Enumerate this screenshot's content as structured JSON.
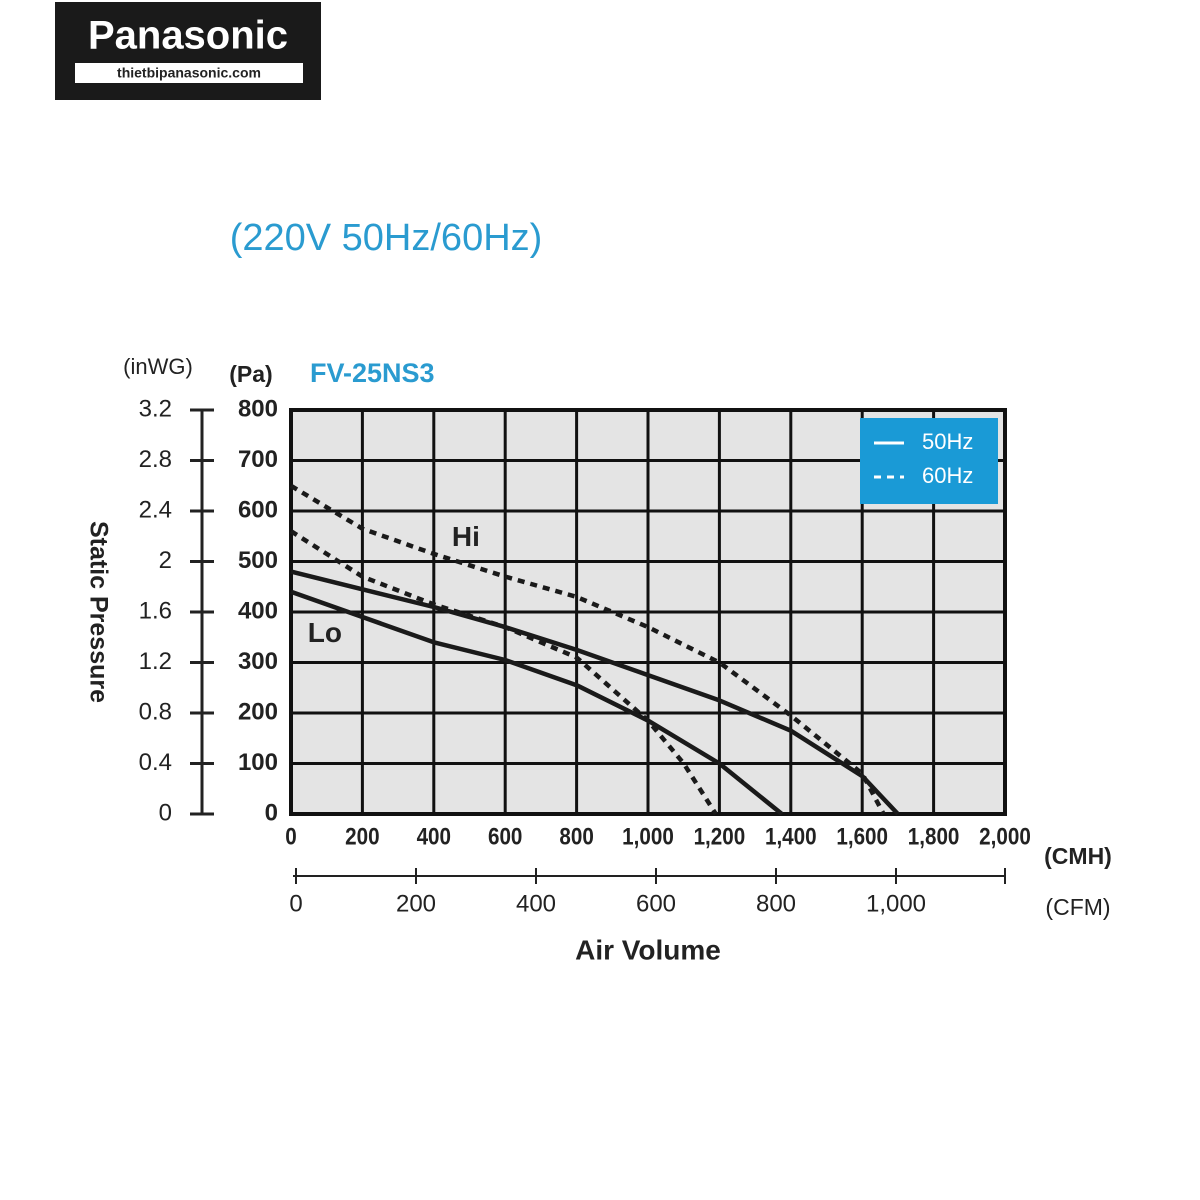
{
  "logo": {
    "brand": "Panasonic",
    "site": "thietbipanasonic.com"
  },
  "chart_data": {
    "type": "line",
    "subtitle": "(220V 50Hz/60Hz)",
    "title": "FV-25NS3",
    "y_label": "Static Pressure",
    "x_label": "Air Volume",
    "y_unit": "(Pa)",
    "y2_unit": "(inWG)",
    "x_unit": "(CMH)",
    "x2_unit": "(CFM)",
    "xlim": [
      0,
      2000
    ],
    "xticks": [
      0,
      200,
      400,
      600,
      800,
      {
        "value": 1000,
        "label": "1,000"
      },
      {
        "value": 1200,
        "label": "1,200"
      },
      {
        "value": 1400,
        "label": "1,400"
      },
      {
        "value": 1600,
        "label": "1,600"
      },
      {
        "value": 1800,
        "label": "1,800"
      },
      {
        "value": 2000,
        "label": "2,000"
      }
    ],
    "x2lim": [
      0,
      1180
    ],
    "x2ticks": [
      0,
      200,
      400,
      600,
      800,
      {
        "value": 1000,
        "label": "1,000"
      }
    ],
    "ylim": [
      0,
      800
    ],
    "yticks": [
      0,
      100,
      200,
      300,
      400,
      500,
      600,
      700,
      800
    ],
    "y2lim": [
      0,
      3.2
    ],
    "y2ticks": [
      0,
      0.4,
      0.8,
      1.2,
      1.6,
      2.0,
      2.4,
      2.8,
      3.2
    ],
    "grid": true,
    "legend_position": "upper right",
    "legend": [
      {
        "label": "50Hz",
        "style": "solid"
      },
      {
        "label": "60Hz",
        "style": "dashed"
      }
    ],
    "series": [
      {
        "legend": 0,
        "color": "#1a1a1a",
        "x": [
          0,
          200,
          400,
          600,
          800,
          1000,
          1200,
          1400,
          1600,
          1700
        ],
        "values": [
          480,
          445,
          410,
          370,
          325,
          275,
          225,
          165,
          75,
          0
        ]
      },
      {
        "legend": 0,
        "color": "#1a1a1a",
        "x": [
          0,
          200,
          400,
          600,
          800,
          1000,
          1200,
          1375
        ],
        "values": [
          440,
          390,
          340,
          305,
          255,
          185,
          100,
          0
        ]
      },
      {
        "legend": 1,
        "color": "#1a1a1a",
        "x": [
          0,
          200,
          400,
          600,
          800,
          1000,
          1200,
          1400,
          1600,
          1660
        ],
        "values": [
          650,
          565,
          515,
          470,
          430,
          370,
          300,
          195,
          80,
          0
        ]
      },
      {
        "legend": 1,
        "color": "#1a1a1a",
        "x": [
          0,
          200,
          400,
          600,
          800,
          1000,
          1100,
          1190
        ],
        "values": [
          560,
          470,
          415,
          370,
          310,
          185,
          100,
          0
        ]
      }
    ],
    "annotations": [
      {
        "text": "Hi",
        "x": 490,
        "y": 545
      },
      {
        "text": "Lo",
        "x": 95,
        "y": 355
      }
    ]
  }
}
